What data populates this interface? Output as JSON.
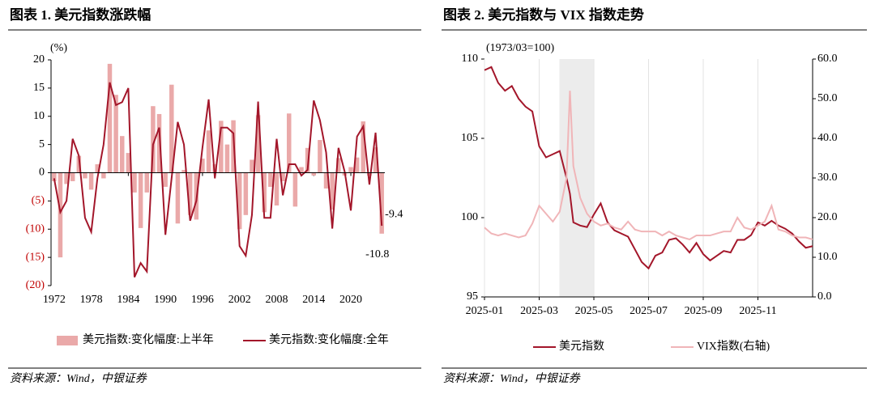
{
  "chart_data": [
    {
      "type": "bar",
      "title": "图表 1. 美元指数涨跌幅",
      "y_label": "(%)",
      "source": "资料来源：Wind，中银证券",
      "x": [
        1972,
        1973,
        1974,
        1975,
        1976,
        1977,
        1978,
        1979,
        1980,
        1981,
        1982,
        1983,
        1984,
        1985,
        1986,
        1987,
        1988,
        1989,
        1990,
        1991,
        1992,
        1993,
        1994,
        1995,
        1996,
        1997,
        1998,
        1999,
        2000,
        2001,
        2002,
        2003,
        2004,
        2005,
        2006,
        2007,
        2008,
        2009,
        2010,
        2011,
        2012,
        2013,
        2014,
        2015,
        2016,
        2017,
        2018,
        2019,
        2020,
        2021,
        2022,
        2023,
        2024,
        2025
      ],
      "xlim": [
        1971.5,
        2025.5
      ],
      "xticks": [
        1972,
        1978,
        1984,
        1990,
        1996,
        2002,
        2008,
        2014,
        2020
      ],
      "ylim": [
        -20,
        20
      ],
      "yticks": [
        {
          "value": -20,
          "label": "(20)"
        },
        {
          "value": -15,
          "label": "(15)"
        },
        {
          "value": -10,
          "label": "(10)"
        },
        {
          "value": -5,
          "label": "(5)"
        },
        0,
        5,
        10,
        15,
        20
      ],
      "series": [
        {
          "name": "美元指数:变化幅度:上半年",
          "type": "bar",
          "color": "#eaa9a9",
          "values": [
            -1.5,
            -15,
            -2,
            -1.5,
            3,
            -1,
            -3,
            1.5,
            -1,
            19.3,
            13.8,
            6.5,
            3.5,
            -3.5,
            -9.8,
            -3.5,
            11.8,
            10.4,
            -2.5,
            15.6,
            -9,
            0.5,
            -7.5,
            -8.3,
            2.5,
            7.5,
            1.5,
            9.2,
            5,
            9.3,
            -10,
            -7.5,
            2.3,
            10.2,
            -7,
            -2.5,
            -5.8,
            -1.5,
            10.5,
            -6,
            1,
            4.4,
            -0.5,
            5.8,
            -2.8,
            -6.5,
            2.6,
            -0.5,
            1,
            2.7,
            9.1,
            -0.5,
            4.5,
            -10.8
          ],
          "value_labels": [
            null,
            null,
            null,
            null,
            null,
            null,
            null,
            null,
            null,
            null,
            null,
            null,
            null,
            null,
            null,
            null,
            null,
            null,
            null,
            null,
            null,
            null,
            null,
            null,
            null,
            null,
            null,
            null,
            null,
            null,
            null,
            null,
            null,
            null,
            null,
            null,
            null,
            null,
            null,
            null,
            null,
            null,
            null,
            null,
            null,
            null,
            null,
            null,
            null,
            null,
            null,
            null,
            null,
            "-10.8"
          ]
        },
        {
          "name": "美元指数:变化幅度:全年",
          "type": "line",
          "color": "#a3162a",
          "values": [
            -1,
            -7,
            -5,
            6,
            3,
            -8,
            -10.5,
            -1,
            5,
            16,
            12,
            12.5,
            15,
            -18.5,
            -16,
            -17.5,
            5,
            8,
            -11,
            -1,
            9,
            5,
            -8.5,
            -5,
            4.5,
            13,
            -1,
            8,
            8,
            7,
            -13,
            -14.7,
            -7.5,
            12.6,
            -8,
            -8,
            6,
            -4,
            1.5,
            1.5,
            -0.5,
            0.5,
            12.8,
            9.3,
            3.6,
            -9.9,
            4.4,
            0.2,
            -6.7,
            6.4,
            8.2,
            -2.1,
            7.1,
            -9.4
          ],
          "value_labels": [
            null,
            null,
            null,
            null,
            null,
            null,
            null,
            null,
            null,
            null,
            null,
            null,
            null,
            null,
            null,
            null,
            null,
            null,
            null,
            null,
            null,
            null,
            null,
            null,
            null,
            null,
            null,
            null,
            null,
            null,
            null,
            null,
            null,
            null,
            null,
            null,
            null,
            null,
            null,
            null,
            null,
            null,
            null,
            null,
            null,
            null,
            null,
            null,
            null,
            null,
            null,
            null,
            null,
            "-9.4"
          ]
        }
      ]
    },
    {
      "type": "line",
      "title": "图表 2. 美元指数与 VIX 指数走势",
      "y_label": "(1973/03=100)",
      "source": "资料来源：Wind，中银证券",
      "x": [
        1,
        1.25,
        1.5,
        1.75,
        2,
        2.25,
        2.5,
        2.75,
        3,
        3.25,
        3.5,
        3.75,
        4,
        4.125,
        4.25,
        4.5,
        4.75,
        5,
        5.25,
        5.5,
        5.75,
        6,
        6.25,
        6.5,
        6.75,
        7,
        7.25,
        7.5,
        7.75,
        8,
        8.25,
        8.5,
        8.75,
        9,
        9.25,
        9.5,
        9.75,
        10,
        10.25,
        10.5,
        10.75,
        11,
        11.25,
        11.5,
        11.75,
        12,
        12.25,
        12.5,
        12.75,
        13
      ],
      "xlim": [
        1,
        13
      ],
      "xticks": [
        {
          "value": 1,
          "label": "2025-01"
        },
        {
          "value": 3,
          "label": "2025-03"
        },
        {
          "value": 5,
          "label": "2025-05"
        },
        {
          "value": 7,
          "label": "2025-07"
        },
        {
          "value": 9,
          "label": "2025-09"
        },
        {
          "value": 11,
          "label": "2025-11"
        }
      ],
      "shade": [
        3.74,
        4.98
      ],
      "grid": "x",
      "ylim": [
        95,
        110
      ],
      "yticks": [
        95,
        100,
        105,
        110
      ],
      "y2lim": [
        0,
        60
      ],
      "y2ticks": [
        {
          "value": 0,
          "label": "0.0"
        },
        {
          "value": 10,
          "label": "10.0"
        },
        {
          "value": 20,
          "label": "20.0"
        },
        {
          "value": 30,
          "label": "30.0"
        },
        {
          "value": 40,
          "label": "40.0"
        },
        {
          "value": 50,
          "label": "50.0"
        },
        {
          "value": 60,
          "label": "60.0"
        }
      ],
      "series": [
        {
          "name": "美元指数",
          "color": "#a3162a",
          "values": [
            109.3,
            109.5,
            108.5,
            108,
            108.3,
            107.5,
            107,
            106.7,
            104.5,
            103.8,
            104,
            104.2,
            102.5,
            101.5,
            99.7,
            99.5,
            99.4,
            100.2,
            100.9,
            99.7,
            99.2,
            99,
            98.8,
            98,
            97.2,
            96.8,
            97.6,
            97.8,
            98.6,
            98.7,
            98.3,
            97.8,
            98.4,
            97.7,
            97.3,
            97.6,
            97.9,
            97.8,
            98.6,
            98.6,
            98.9,
            99.7,
            99.5,
            99.8,
            99.5,
            99.3,
            99,
            98.5,
            98.1,
            98.2
          ]
        },
        {
          "name": "VIX指数(右轴)",
          "color": "#f0b5b8",
          "axis": "y2",
          "values": [
            17.5,
            16,
            15.5,
            16,
            15.5,
            15,
            15.5,
            18.5,
            23,
            21,
            19,
            21.5,
            30,
            52,
            33,
            25,
            21,
            19,
            18,
            18.5,
            17.5,
            17,
            19,
            17,
            16.5,
            16.5,
            16.5,
            15.5,
            16.5,
            15.5,
            15,
            14.5,
            15.5,
            15.5,
            15.5,
            16,
            16.5,
            16.5,
            20,
            17.5,
            17,
            18,
            19,
            23,
            17,
            16.5,
            15.5,
            15,
            15,
            14.5
          ]
        }
      ]
    }
  ]
}
